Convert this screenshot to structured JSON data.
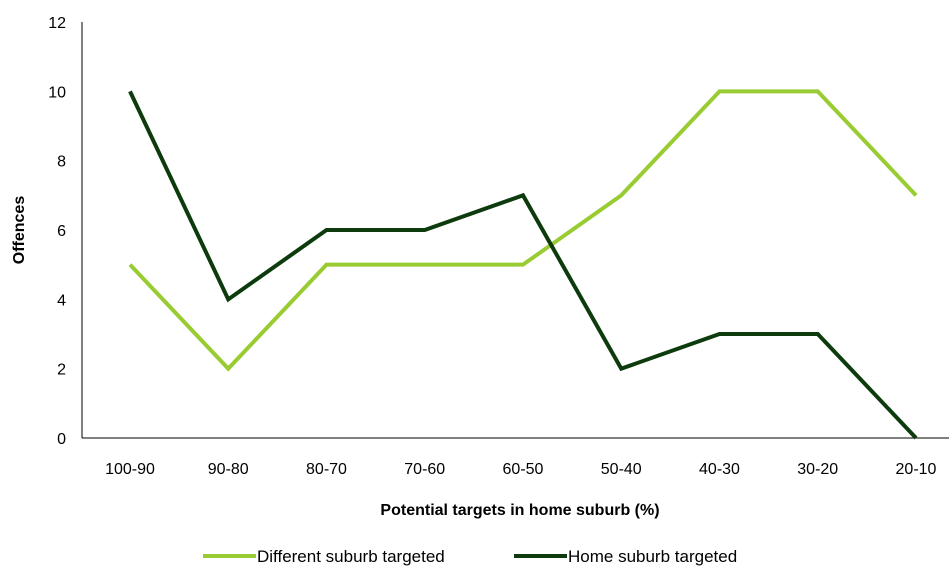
{
  "chart_data": {
    "type": "line",
    "title": "",
    "xlabel": "Potential targets in home suburb (%)",
    "ylabel": "Offences",
    "categories": [
      "100-90",
      "90-80",
      "80-70",
      "70-60",
      "60-50",
      "50-40",
      "40-30",
      "30-20",
      "20-10"
    ],
    "ylim": [
      0,
      12
    ],
    "yticks": [
      0,
      2,
      4,
      6,
      8,
      10,
      12
    ],
    "grid": false,
    "legend_position": "bottom",
    "series": [
      {
        "name": "Different suburb targeted",
        "color": "#99cc33",
        "values": [
          5,
          2,
          5,
          5,
          5,
          7,
          10,
          10,
          7
        ]
      },
      {
        "name": "Home suburb targeted",
        "color": "#0d3b0d",
        "values": [
          10,
          4,
          6,
          6,
          7,
          2,
          3,
          3,
          0
        ]
      }
    ]
  }
}
